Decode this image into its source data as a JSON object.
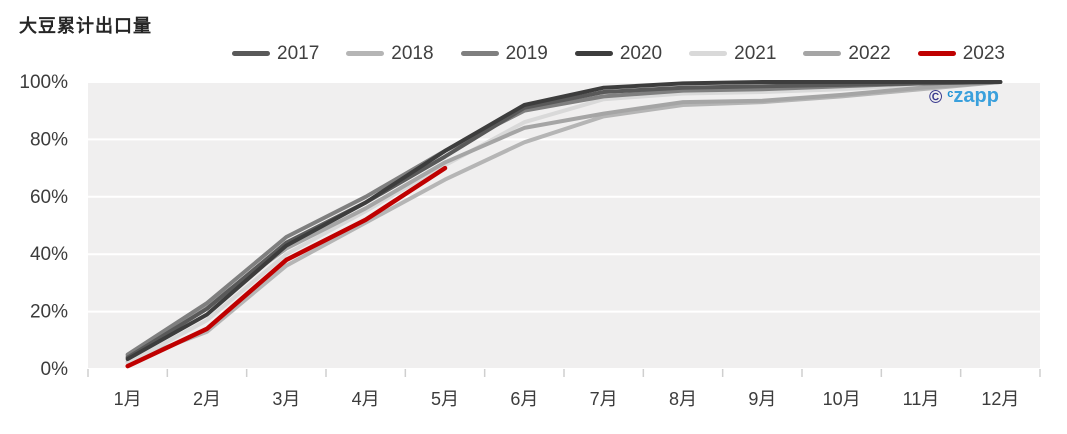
{
  "chart_data": {
    "type": "line",
    "title": "大豆累计出口量",
    "x_categories": [
      "1月",
      "2月",
      "3月",
      "4月",
      "5月",
      "6月",
      "7月",
      "8月",
      "9月",
      "10月",
      "11月",
      "12月"
    ],
    "y_tick_labels": [
      "0%",
      "20%",
      "40%",
      "60%",
      "80%",
      "100%"
    ],
    "y_tick_values": [
      0,
      20,
      40,
      60,
      80,
      100
    ],
    "ylim": [
      0,
      100
    ],
    "xlabel": "",
    "ylabel": "",
    "grid": "horizontal-white-lines-on-gray-panel",
    "legend_position": "top",
    "panel_color": "#f0efef",
    "gridline_color": "#ffffff",
    "tick_color": "#cfcfcf",
    "axis_label_color": "#3c3c3c",
    "series": [
      {
        "name": "2017",
        "color": "#595959",
        "values": [
          4,
          21,
          44,
          58,
          74,
          91,
          96.5,
          98,
          98.5,
          99,
          99.5,
          100
        ]
      },
      {
        "name": "2018",
        "color": "#b5b5b5",
        "values": [
          2.5,
          13,
          36,
          51,
          66,
          79,
          88,
          92,
          93,
          95,
          97.5,
          100
        ]
      },
      {
        "name": "2019",
        "color": "#7f7f7f",
        "values": [
          5,
          23,
          46,
          60,
          76,
          90,
          95,
          97,
          97.5,
          98.5,
          99.5,
          100
        ]
      },
      {
        "name": "2020",
        "color": "#3d3d3d",
        "values": [
          3.5,
          19,
          43,
          58,
          76,
          92,
          98,
          99.5,
          100,
          100,
          100,
          100
        ]
      },
      {
        "name": "2021",
        "color": "#d9d9d9",
        "values": [
          2,
          17,
          40,
          55,
          71,
          86,
          94,
          96,
          96.5,
          97.5,
          99,
          100
        ]
      },
      {
        "name": "2022",
        "color": "#a5a5a5",
        "values": [
          4.5,
          22,
          42,
          56,
          72,
          84,
          89,
          93,
          93.5,
          95.5,
          98,
          100
        ]
      },
      {
        "name": "2023",
        "color": "#bf0000",
        "values": [
          1,
          14,
          38,
          52,
          70,
          null,
          null,
          null,
          null,
          null,
          null,
          null
        ]
      }
    ],
    "draw_order": [
      "2018",
      "2021",
      "2022",
      "2019",
      "2017",
      "2020",
      "2023"
    ]
  },
  "watermark": {
    "copyright_symbol": "©",
    "prefix": "c",
    "name": "zapp"
  }
}
